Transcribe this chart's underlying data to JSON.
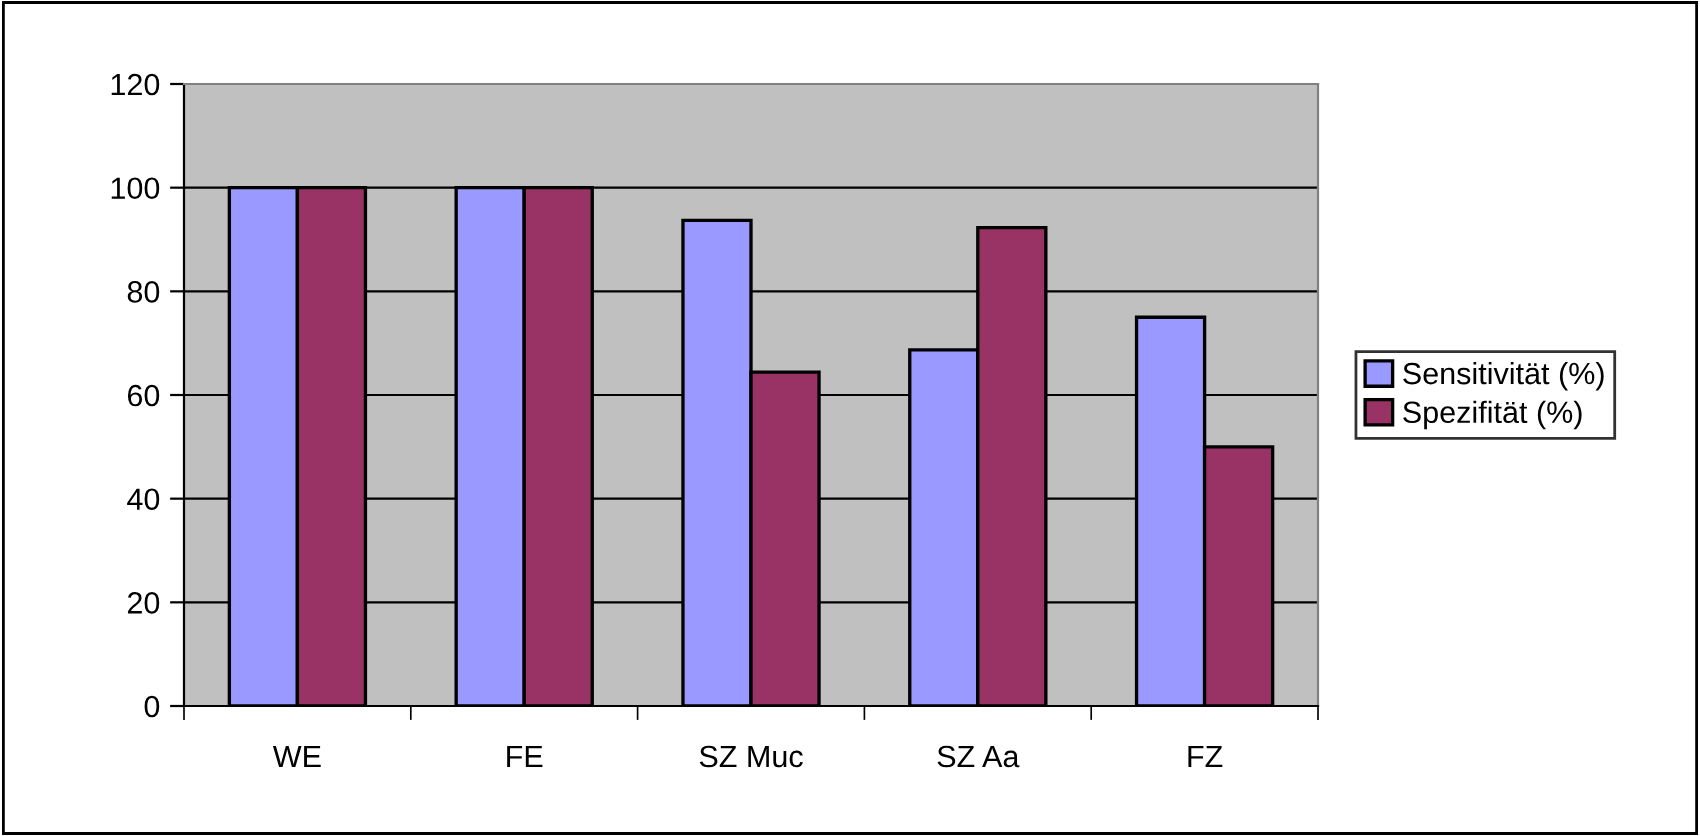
{
  "chart_data": {
    "type": "bar",
    "categories": [
      "WE",
      "FE",
      "SZ Muc",
      "SZ Aa",
      "FZ"
    ],
    "series": [
      {
        "name": "Sensitivität (%)",
        "color": "#9999ff",
        "values": [
          100,
          100,
          93.7,
          68.7,
          75
        ]
      },
      {
        "name": "Spezifität (%)",
        "color": "#993366",
        "values": [
          100,
          100,
          64.4,
          92.3,
          50
        ]
      }
    ],
    "ylim": [
      0,
      120
    ],
    "yticks": [
      0,
      20,
      40,
      60,
      80,
      100,
      120
    ],
    "grid": "y",
    "legend": "right"
  }
}
